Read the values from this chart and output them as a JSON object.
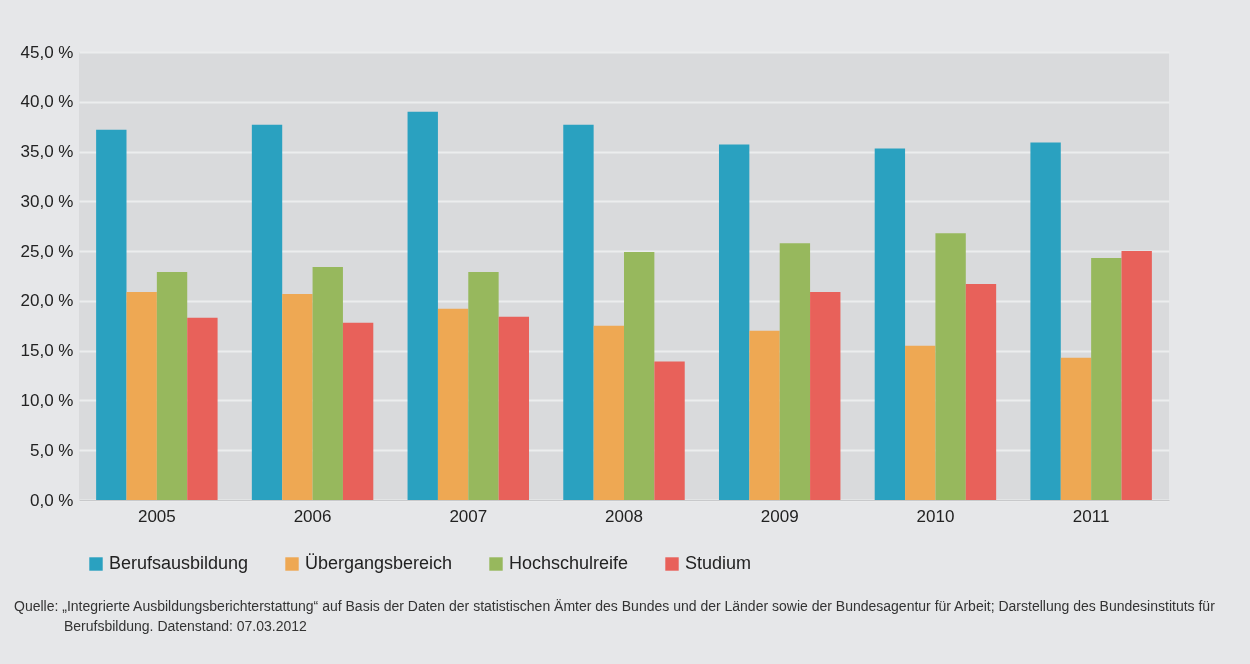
{
  "chart_data": {
    "type": "bar",
    "categories": [
      "2005",
      "2006",
      "2007",
      "2008",
      "2009",
      "2010",
      "2011"
    ],
    "series": [
      {
        "name": "Berufsausbildung",
        "color": "#2aa1c0",
        "values": [
          37.2,
          37.7,
          39.0,
          37.7,
          35.7,
          35.3,
          35.9
        ]
      },
      {
        "name": "Übergangsbereich",
        "color": "#eea853",
        "values": [
          20.9,
          20.7,
          19.2,
          17.5,
          17.0,
          15.5,
          14.3
        ]
      },
      {
        "name": "Hochschulreife",
        "color": "#97b85d",
        "values": [
          22.9,
          23.4,
          22.9,
          24.9,
          25.8,
          26.8,
          24.3
        ]
      },
      {
        "name": "Studium",
        "color": "#e8615a",
        "values": [
          18.3,
          17.8,
          18.4,
          13.9,
          20.9,
          21.7,
          25.0
        ]
      }
    ],
    "ylim": [
      0,
      45
    ],
    "yticks": [
      {
        "value": 0,
        "label": "0,0 %"
      },
      {
        "value": 5,
        "label": "5,0 %"
      },
      {
        "value": 10,
        "label": "10,0 %"
      },
      {
        "value": 15,
        "label": "15,0 %"
      },
      {
        "value": 20,
        "label": "20,0 %"
      },
      {
        "value": 25,
        "label": "25,0 %"
      },
      {
        "value": 30,
        "label": "30,0 %"
      },
      {
        "value": 35,
        "label": "35,0 %"
      },
      {
        "value": 40,
        "label": "40,0 %"
      },
      {
        "value": 45,
        "label": "45,0 %"
      }
    ],
    "grid": "y",
    "legend": "bottom",
    "annotations": [
      "Quelle: „Integrierte Ausbildungsberichterstattung“ auf Basis der Daten der statistischen Ämter des Bundes und der Länder sowie der Bundesagentur für Arbeit; Darstellung des Bundesinstituts für Berufsbildung. Datenstand: 07.03.2012"
    ]
  }
}
